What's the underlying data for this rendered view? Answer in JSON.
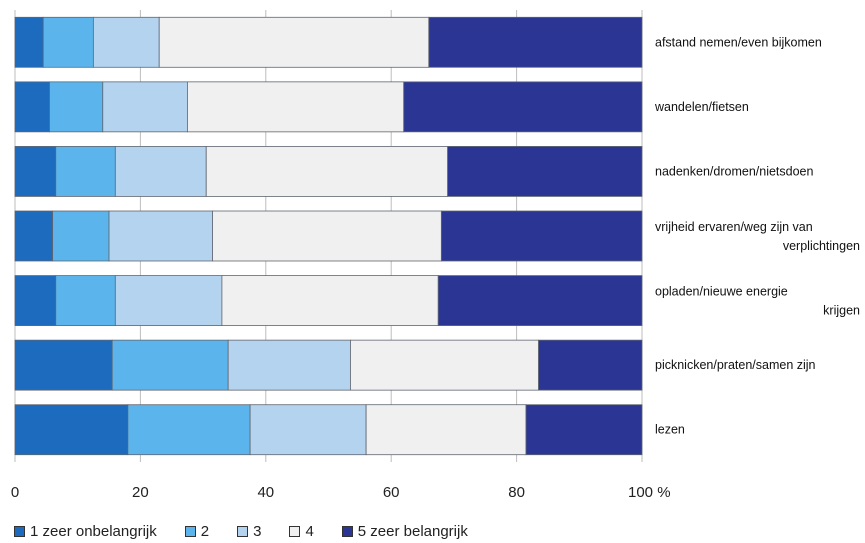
{
  "chart_data": {
    "type": "bar",
    "orientation": "horizontal",
    "stacked": true,
    "categories": [
      [
        "afstand nemen/even bijkomen"
      ],
      [
        "wandelen/fietsen"
      ],
      [
        "nadenken/dromen/nietsdoen"
      ],
      [
        "vrijheid ervaren/weg zijn van",
        "verplichtingen"
      ],
      [
        "opladen/nieuwe energie",
        "krijgen"
      ],
      [
        "picknicken/praten/samen zijn"
      ],
      [
        "lezen"
      ]
    ],
    "series": [
      {
        "name": "1 zeer onbelangrijk",
        "color": "#1c6bbf",
        "values": [
          4.5,
          5.5,
          6.5,
          6,
          6.5,
          15.5,
          18
        ]
      },
      {
        "name": "2",
        "color": "#5bb5ec",
        "values": [
          8,
          8.5,
          9.5,
          9,
          9.5,
          18.5,
          19.5
        ]
      },
      {
        "name": "3",
        "color": "#b3d3ef",
        "values": [
          10.5,
          13.5,
          14.5,
          16.5,
          17,
          19.5,
          18.5
        ]
      },
      {
        "name": "4",
        "color": "#f0f0f0",
        "values": [
          43,
          34.5,
          38.5,
          36.5,
          34.5,
          30,
          25.5
        ]
      },
      {
        "name": "5 zeer belangrijk",
        "color": "#2b3593",
        "values": [
          34,
          38,
          31,
          32,
          32.5,
          16.5,
          18.5
        ]
      }
    ],
    "xlim": [
      0,
      100
    ],
    "xticks": [
      "0",
      "20",
      "40",
      "60",
      "80",
      "100 %"
    ],
    "grid": true,
    "legend": "bottom"
  }
}
